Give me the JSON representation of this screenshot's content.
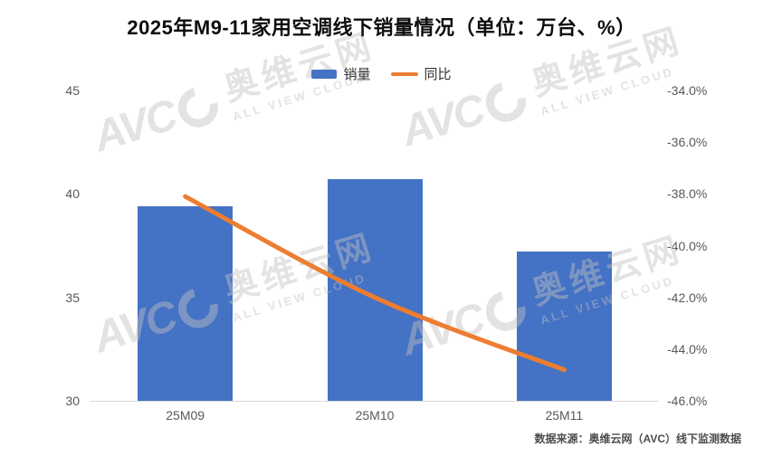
{
  "title": "2025年M9-11家用空调线下销量情况（单位：万台、%）",
  "legend": [
    {
      "label": "销量",
      "type": "bar",
      "color": "#4472c4"
    },
    {
      "label": "同比",
      "type": "line",
      "color": "#ed7d31"
    }
  ],
  "source": "数据来源：奥维云网（AVC）线下监测数据",
  "watermark": {
    "logo": "AVC",
    "cn": "奥维云网",
    "en": "ALL VIEW CLOUD"
  },
  "colors": {
    "bar": "#4472c4",
    "line": "#ed7d31",
    "axis_text": "#595959",
    "axis_line": "#d9d9d9",
    "title_text": "#0d0d0d"
  },
  "chart_data": {
    "type": "bar+line combo",
    "title": "2025年M9-11家用空调线下销量情况（单位：万台、%）",
    "categories": [
      "25M09",
      "25M10",
      "25M11"
    ],
    "series": [
      {
        "name": "销量",
        "type": "bar",
        "axis": "left",
        "unit": "万台",
        "values": [
          39.4,
          40.7,
          37.2
        ]
      },
      {
        "name": "同比",
        "type": "line",
        "axis": "right",
        "unit": "%",
        "values": [
          -38.1,
          -42.0,
          -44.8
        ]
      }
    ],
    "left_axis": {
      "min": 30,
      "max": 45,
      "ticks": [
        45,
        40,
        35,
        30
      ]
    },
    "right_axis": {
      "min": -46,
      "max": -34,
      "tick_values": [
        -34,
        -36,
        -38,
        -40,
        -42,
        -44,
        -46
      ],
      "tick_labels": [
        "-34.0%",
        "-36.0%",
        "-38.0%",
        "-40.0%",
        "-42.0%",
        "-44.0%",
        "-46.0%"
      ]
    },
    "grid": "off",
    "legend_position": "top-center",
    "source_note": "数据来源：奥维云网（AVC）线下监测数据"
  }
}
